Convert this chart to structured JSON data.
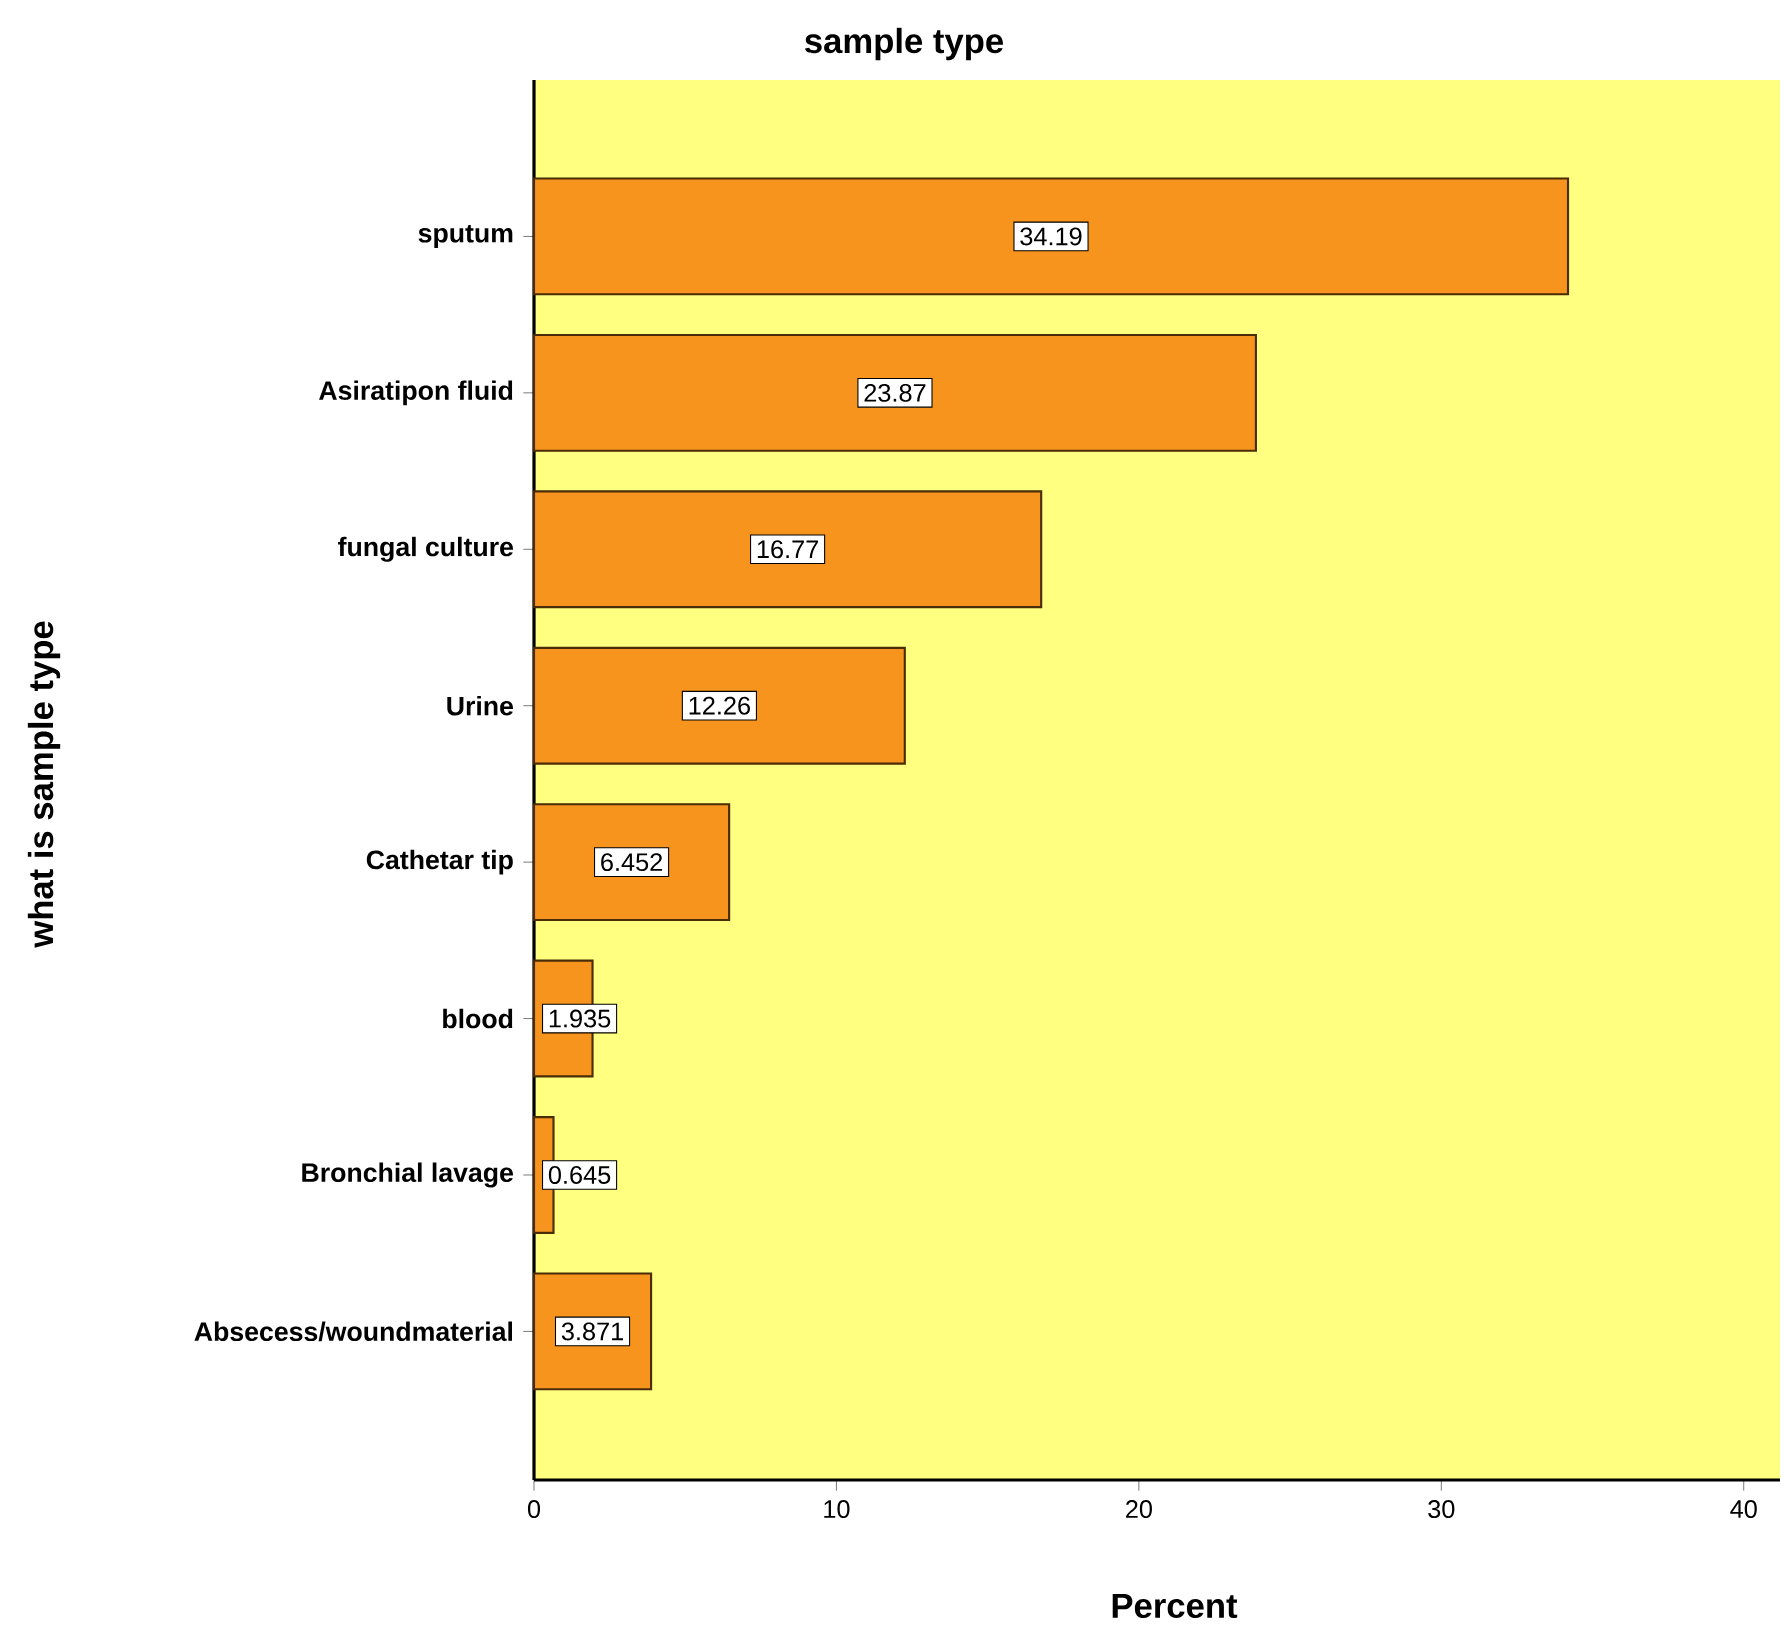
{
  "chart_data": {
    "type": "bar",
    "orientation": "horizontal",
    "title": "sample type",
    "xlabel": "Percent",
    "ylabel": "what is sample type",
    "categories": [
      "sputum",
      "Asiratipon fluid",
      "fungal culture",
      "Urine",
      "Cathetar tip",
      "blood",
      "Bronchial lavage",
      "Absecess/woundmaterial"
    ],
    "values": [
      34.19,
      23.87,
      16.77,
      12.26,
      6.452,
      1.935,
      0.645,
      3.871
    ],
    "color": "#f7941d",
    "data_labels": true,
    "xlim": [
      0,
      41.2
    ],
    "xticks": [
      0,
      10,
      20,
      30,
      40
    ]
  }
}
